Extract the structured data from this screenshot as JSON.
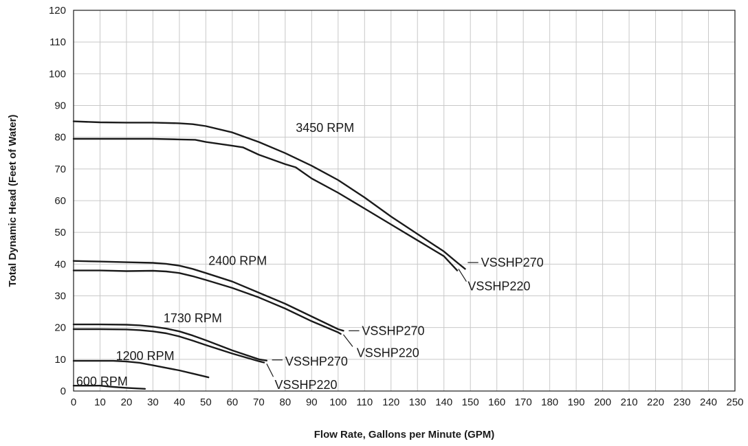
{
  "chart_data": {
    "type": "line",
    "title": "",
    "xlabel": "Flow Rate, Gallons per Minute (GPM)",
    "ylabel": "Total Dynamic Head (Feet of Water)",
    "xlim": [
      0,
      250
    ],
    "ylim": [
      0,
      120
    ],
    "xticks": [
      0,
      10,
      20,
      30,
      40,
      50,
      60,
      70,
      80,
      90,
      100,
      110,
      120,
      130,
      140,
      150,
      160,
      170,
      180,
      190,
      200,
      210,
      220,
      230,
      240,
      250
    ],
    "yticks": [
      0,
      10,
      20,
      30,
      40,
      50,
      60,
      70,
      80,
      90,
      100,
      110,
      120
    ],
    "grid": true,
    "speed_labels": [
      {
        "text": "3450 RPM",
        "x": 84,
        "y": 83
      },
      {
        "text": "2400 RPM",
        "x": 51,
        "y": 41
      },
      {
        "text": "1730 RPM",
        "x": 34,
        "y": 23
      },
      {
        "text": "1200 RPM",
        "x": 16,
        "y": 11
      },
      {
        "text": "600 RPM",
        "x": 1,
        "y": 3
      }
    ],
    "series": [
      {
        "model": "VSSHP270",
        "rpm": "3450 RPM",
        "x": [
          0,
          10,
          20,
          30,
          40,
          45,
          50,
          60,
          70,
          80,
          90,
          100,
          110,
          120,
          130,
          140,
          145,
          148
        ],
        "y": [
          85,
          84.7,
          84.6,
          84.6,
          84.4,
          84.1,
          83.5,
          81.5,
          78.5,
          75,
          71,
          66.5,
          61,
          55,
          49.5,
          44,
          40.5,
          38.5
        ]
      },
      {
        "model": "VSSHP220",
        "rpm": "3450 RPM",
        "x": [
          0,
          10,
          20,
          30,
          40,
          46,
          50,
          60,
          64,
          70,
          80,
          84,
          90,
          100,
          110,
          120,
          130,
          140,
          145
        ],
        "y": [
          79.5,
          79.5,
          79.5,
          79.5,
          79.3,
          79.2,
          78.5,
          77.3,
          76.8,
          74.5,
          71.5,
          70.5,
          67,
          62.5,
          57.5,
          52.5,
          47.5,
          42.5,
          38
        ]
      },
      {
        "model": "VSSHP270",
        "rpm": "2400 RPM",
        "x": [
          0,
          10,
          20,
          30,
          35,
          40,
          45,
          50,
          60,
          70,
          80,
          90,
          100,
          102
        ],
        "y": [
          41,
          40.8,
          40.6,
          40.4,
          40.1,
          39.5,
          38.5,
          37.2,
          34.5,
          31,
          27.5,
          23.5,
          19.5,
          19
        ]
      },
      {
        "model": "VSSHP220",
        "rpm": "2400 RPM",
        "x": [
          0,
          10,
          20,
          30,
          35,
          40,
          45,
          50,
          60,
          70,
          80,
          90,
          100,
          101
        ],
        "y": [
          38,
          38,
          37.8,
          37.9,
          37.7,
          37.2,
          36.2,
          35,
          32.5,
          29.5,
          26,
          22,
          18.5,
          18
        ]
      },
      {
        "model": "VSSHP270",
        "rpm": "1730 RPM",
        "x": [
          0,
          10,
          20,
          25,
          30,
          35,
          40,
          45,
          50,
          60,
          70,
          73
        ],
        "y": [
          21,
          21,
          20.9,
          20.7,
          20.3,
          19.7,
          18.8,
          17.5,
          16,
          12.8,
          10,
          9.6
        ]
      },
      {
        "model": "VSSHP220",
        "rpm": "1730 RPM",
        "x": [
          0,
          10,
          20,
          25,
          30,
          35,
          40,
          45,
          50,
          60,
          70,
          72
        ],
        "y": [
          19.5,
          19.5,
          19.4,
          19.2,
          18.8,
          18.2,
          17.2,
          15.9,
          14.5,
          11.8,
          9.4,
          9
        ]
      },
      {
        "model": "",
        "rpm": "1200 RPM",
        "x": [
          0,
          10,
          15,
          20,
          25,
          30,
          35,
          40,
          45,
          51
        ],
        "y": [
          9.5,
          9.5,
          9.5,
          9.3,
          8.9,
          8.1,
          7.3,
          6.5,
          5.5,
          4.3
        ]
      },
      {
        "model": "",
        "rpm": "600 RPM",
        "x": [
          0,
          5,
          10,
          15,
          20,
          27
        ],
        "y": [
          1.7,
          1.7,
          1.7,
          1.3,
          1,
          0.7
        ]
      }
    ],
    "model_labels": [
      {
        "text": "VSSHP270",
        "x": 154,
        "y": 40.5,
        "lead_from": [
          149,
          40.5
        ],
        "lead_to": [
          153,
          40.5
        ]
      },
      {
        "text": "VSSHP220",
        "x": 149,
        "y": 33,
        "lead_from": [
          145.5,
          38.5
        ],
        "lead_to": [
          148.5,
          34.5
        ]
      },
      {
        "text": "VSSHP270",
        "x": 109,
        "y": 19,
        "lead_from": [
          104,
          19
        ],
        "lead_to": [
          108,
          19
        ]
      },
      {
        "text": "VSSHP220",
        "x": 107,
        "y": 12,
        "lead_from": [
          102,
          17.8
        ],
        "lead_to": [
          105.5,
          14
        ]
      },
      {
        "text": "VSSHP270",
        "x": 80,
        "y": 9.3,
        "lead_from": [
          75,
          9.8
        ],
        "lead_to": [
          79,
          9.8
        ]
      },
      {
        "text": "VSSHP220",
        "x": 76,
        "y": 2,
        "lead_from": [
          73,
          8.6
        ],
        "lead_to": [
          75.5,
          4.5
        ]
      }
    ]
  }
}
